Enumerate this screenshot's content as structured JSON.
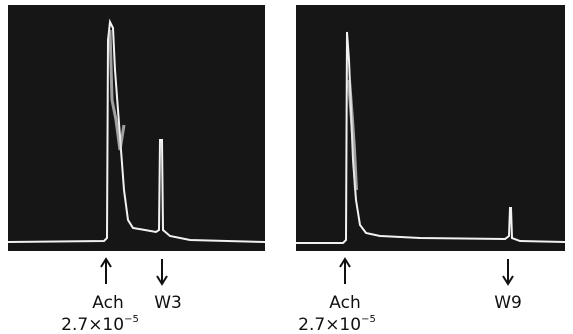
{
  "panels": [
    {
      "stimulus": {
        "label": "Ach",
        "concentration": "2.7×10",
        "exponent": "−5"
      },
      "wash": "W3"
    },
    {
      "stimulus": {
        "label": "Ach",
        "concentration": "2.7×10",
        "exponent": "−5"
      },
      "wash": "W9"
    }
  ]
}
